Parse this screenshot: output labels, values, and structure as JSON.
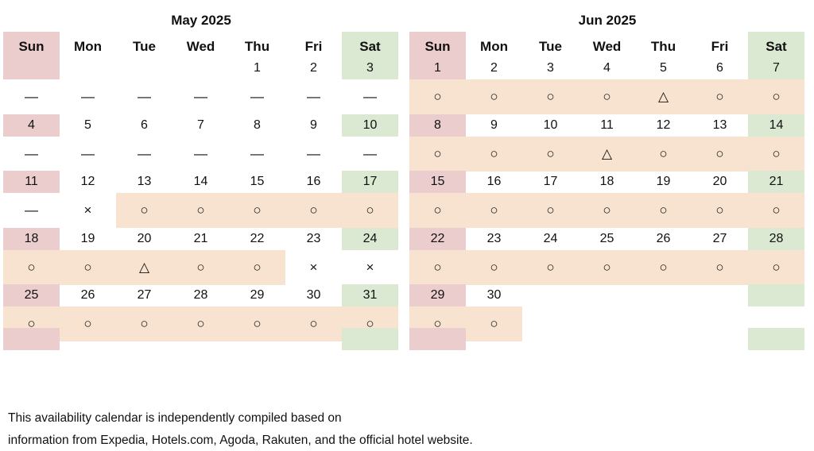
{
  "weekdays": [
    "Sun",
    "Mon",
    "Tue",
    "Wed",
    "Thu",
    "Fri",
    "Sat"
  ],
  "months": [
    {
      "title": "May 2025",
      "weeks": [
        {
          "days": [
            "",
            "",
            "",
            "",
            "1",
            "2",
            "3"
          ],
          "avail": [
            "—",
            "—",
            "—",
            "—",
            "—",
            "—",
            "—"
          ]
        },
        {
          "days": [
            "4",
            "5",
            "6",
            "7",
            "8",
            "9",
            "10"
          ],
          "avail": [
            "—",
            "—",
            "—",
            "—",
            "—",
            "—",
            "—"
          ]
        },
        {
          "days": [
            "11",
            "12",
            "13",
            "14",
            "15",
            "16",
            "17"
          ],
          "avail": [
            "—",
            "×",
            "○",
            "○",
            "○",
            "○",
            "○"
          ]
        },
        {
          "days": [
            "18",
            "19",
            "20",
            "21",
            "22",
            "23",
            "24"
          ],
          "avail": [
            "○",
            "○",
            "△",
            "○",
            "○",
            "×",
            "×"
          ]
        },
        {
          "days": [
            "25",
            "26",
            "27",
            "28",
            "29",
            "30",
            "31"
          ],
          "avail": [
            "○",
            "○",
            "○",
            "○",
            "○",
            "○",
            "○"
          ]
        }
      ]
    },
    {
      "title": "Jun 2025",
      "weeks": [
        {
          "days": [
            "1",
            "2",
            "3",
            "4",
            "5",
            "6",
            "7"
          ],
          "avail": [
            "○",
            "○",
            "○",
            "○",
            "△",
            "○",
            "○"
          ]
        },
        {
          "days": [
            "8",
            "9",
            "10",
            "11",
            "12",
            "13",
            "14"
          ],
          "avail": [
            "○",
            "○",
            "○",
            "△",
            "○",
            "○",
            "○"
          ]
        },
        {
          "days": [
            "15",
            "16",
            "17",
            "18",
            "19",
            "20",
            "21"
          ],
          "avail": [
            "○",
            "○",
            "○",
            "○",
            "○",
            "○",
            "○"
          ]
        },
        {
          "days": [
            "22",
            "23",
            "24",
            "25",
            "26",
            "27",
            "28"
          ],
          "avail": [
            "○",
            "○",
            "○",
            "○",
            "○",
            "○",
            "○"
          ]
        },
        {
          "days": [
            "29",
            "30",
            "",
            "",
            "",
            "",
            ""
          ],
          "avail": [
            "○",
            "○",
            "",
            "",
            "",
            "",
            ""
          ]
        }
      ]
    }
  ],
  "footnote": {
    "line1": "This availability calendar is independently compiled based on",
    "line2": "information from Expedia, Hotels.com, Agoda, Rakuten, and the official hotel website."
  },
  "colors": {
    "sunday": "#ebcdcd",
    "saturday": "#dbe8d2",
    "available_band": "#f7e3cf"
  }
}
